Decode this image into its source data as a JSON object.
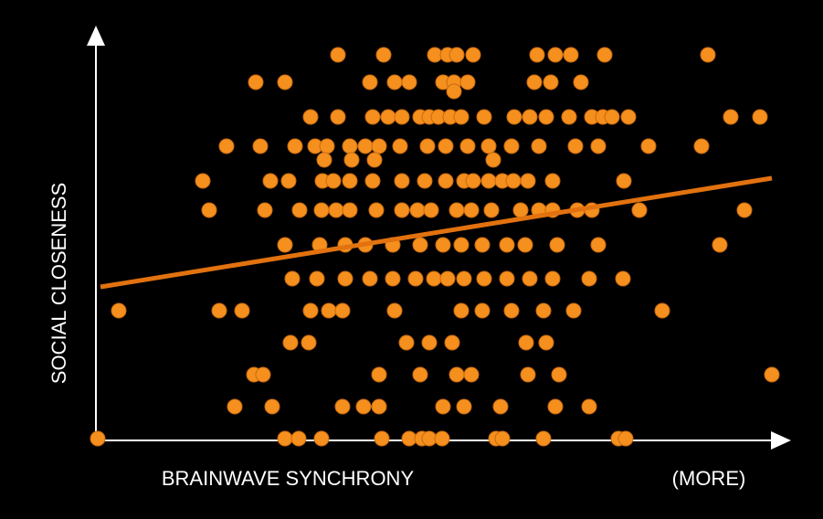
{
  "chart_data": {
    "type": "scatter",
    "x_label": "BRAINWAVE SYNCHRONY",
    "y_label": "SOCIAL CLOSENESS",
    "annotation": "(MORE)",
    "color": "#f5901e",
    "xlim": [
      0,
      740
    ],
    "ylim": [
      0,
      420
    ],
    "x": [
      263,
      313,
      369,
      383,
      393,
      411,
      481,
      501,
      518,
      555,
      668,
      173,
      205,
      298,
      325,
      341,
      378,
      390,
      405,
      478,
      496,
      529,
      390,
      233,
      263,
      301,
      318,
      333,
      353,
      363,
      373,
      386,
      398,
      423,
      456,
      473,
      491,
      516,
      541,
      553,
      563,
      581,
      693,
      725,
      141,
      178,
      216,
      238,
      251,
      276,
      293,
      308,
      331,
      361,
      381,
      405,
      428,
      453,
      483,
      523,
      548,
      603,
      661,
      248,
      278,
      303,
      433,
      115,
      189,
      209,
      246,
      258,
      276,
      301,
      333,
      358,
      381,
      401,
      411,
      428,
      443,
      455,
      471,
      498,
      576,
      122,
      183,
      221,
      245,
      261,
      276,
      305,
      333,
      350,
      365,
      393,
      409,
      431,
      463,
      483,
      498,
      525,
      541,
      593,
      708,
      205,
      243,
      271,
      293,
      323,
      353,
      378,
      398,
      421,
      448,
      468,
      503,
      548,
      681,
      213,
      240,
      271,
      298,
      323,
      348,
      368,
      383,
      401,
      423,
      448,
      473,
      498,
      538,
      575,
      23,
      133,
      158,
      233,
      253,
      268,
      325,
      398,
      421,
      453,
      488,
      521,
      618,
      211,
      231,
      338,
      363,
      388,
      469,
      491,
      171,
      181,
      308,
      353,
      393,
      409,
      471,
      505,
      738,
      150,
      191,
      268,
      291,
      308,
      378,
      401,
      441,
      501,
      538,
      0,
      205,
      220,
      245,
      311,
      341,
      355,
      363,
      377,
      436,
      443,
      488,
      570,
      578
    ],
    "y": [
      420,
      420,
      420,
      420,
      420,
      420,
      420,
      420,
      420,
      420,
      420,
      390,
      390,
      390,
      390,
      390,
      390,
      390,
      390,
      390,
      390,
      390,
      380,
      352,
      352,
      352,
      352,
      352,
      352,
      352,
      352,
      352,
      352,
      352,
      352,
      352,
      352,
      352,
      352,
      352,
      352,
      352,
      352,
      352,
      320,
      320,
      320,
      320,
      320,
      320,
      320,
      320,
      320,
      320,
      320,
      320,
      320,
      320,
      320,
      320,
      320,
      320,
      320,
      305,
      305,
      305,
      305,
      282,
      282,
      282,
      282,
      282,
      282,
      282,
      282,
      282,
      282,
      282,
      282,
      282,
      282,
      282,
      282,
      282,
      282,
      250,
      250,
      250,
      250,
      250,
      250,
      250,
      250,
      250,
      250,
      250,
      250,
      250,
      250,
      250,
      250,
      250,
      250,
      250,
      250,
      212,
      212,
      212,
      212,
      212,
      212,
      212,
      212,
      212,
      212,
      212,
      212,
      212,
      212,
      175,
      175,
      175,
      175,
      175,
      175,
      175,
      175,
      175,
      175,
      175,
      175,
      175,
      175,
      175,
      140,
      140,
      140,
      140,
      140,
      140,
      140,
      140,
      140,
      140,
      140,
      140,
      140,
      105,
      105,
      105,
      105,
      105,
      105,
      105,
      70,
      70,
      70,
      70,
      70,
      70,
      70,
      70,
      70,
      35,
      35,
      35,
      35,
      35,
      35,
      35,
      35,
      35,
      35,
      0,
      0,
      0,
      0,
      0,
      0,
      0,
      0,
      0,
      0,
      0,
      0,
      0,
      0
    ],
    "trend": {
      "color": "#e2720f",
      "x": [
        3,
        738
      ],
      "y": [
        166,
        285
      ]
    }
  }
}
